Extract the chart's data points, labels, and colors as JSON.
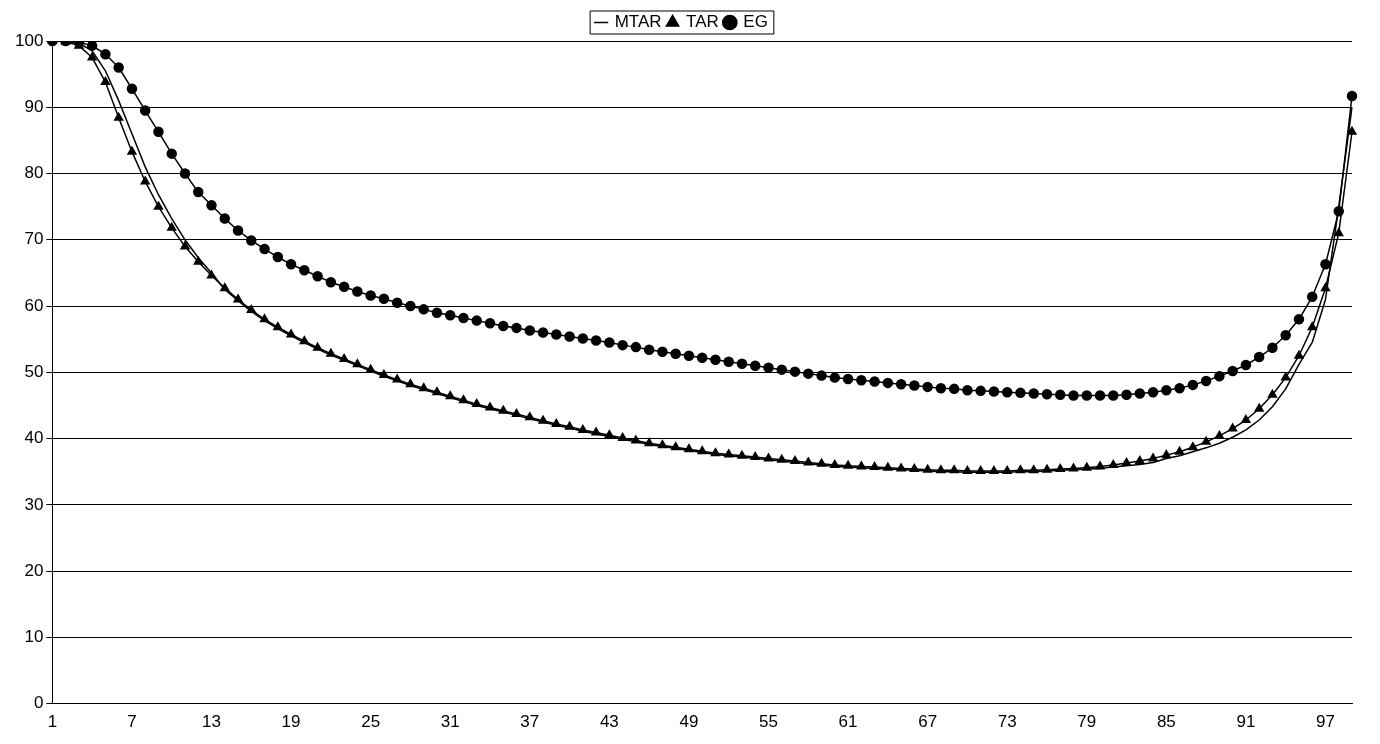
{
  "chart_data": {
    "type": "line",
    "categories": [
      "1",
      null,
      null,
      null,
      null,
      null,
      "7",
      null,
      null,
      null,
      null,
      null,
      "13",
      null,
      null,
      null,
      null,
      null,
      "19",
      null,
      null,
      null,
      null,
      null,
      "25",
      null,
      null,
      null,
      null,
      null,
      "31",
      null,
      null,
      null,
      null,
      null,
      "37",
      null,
      null,
      null,
      null,
      null,
      "43",
      null,
      null,
      null,
      null,
      null,
      "49",
      null,
      null,
      null,
      null,
      null,
      "55",
      null,
      null,
      null,
      null,
      null,
      "61",
      null,
      null,
      null,
      null,
      null,
      "67",
      null,
      null,
      null,
      null,
      null,
      "73",
      null,
      null,
      null,
      null,
      null,
      "79",
      null,
      null,
      null,
      null,
      null,
      "85",
      null,
      null,
      null,
      null,
      null,
      "91",
      null,
      null,
      null,
      null,
      null,
      "97",
      null,
      null
    ],
    "series": [
      {
        "name": "MTAR",
        "color": "#000000",
        "marker": "none",
        "values": [
          100,
          100,
          99.7,
          98.5,
          95.5,
          91,
          86,
          81,
          76.8,
          73.2,
          70,
          67.3,
          65,
          62.5,
          60.8,
          59.2,
          57.8,
          56.6,
          55.5,
          54.5,
          53.5,
          52.6,
          51.8,
          51,
          50.2,
          49.4,
          48.7,
          48,
          47.4,
          46.8,
          46.2,
          45.6,
          45,
          44.5,
          44,
          43.5,
          43,
          42.5,
          42,
          41.6,
          41.1,
          40.7,
          40.3,
          39.9,
          39.5,
          39.1,
          38.8,
          38.5,
          38.2,
          37.9,
          37.6,
          37.4,
          37.2,
          37,
          36.8,
          36.6,
          36.4,
          36.2,
          36,
          35.8,
          35.7,
          35.6,
          35.5,
          35.4,
          35.3,
          35.2,
          35.1,
          35,
          35,
          34.9,
          34.9,
          34.9,
          34.9,
          35,
          35,
          35.1,
          35.2,
          35.3,
          35.4,
          35.5,
          35.7,
          35.9,
          36.1,
          36.4,
          37,
          37.4,
          38,
          38.6,
          39.3,
          40.2,
          41.3,
          42.8,
          44.8,
          47.5,
          51.2,
          54.5,
          61,
          75,
          90
        ]
      },
      {
        "name": "TAR",
        "color": "#000000",
        "marker": "triangle",
        "values": [
          100,
          99.9,
          99.3,
          97.5,
          93.8,
          88.4,
          83.3,
          78.8,
          75,
          71.8,
          69,
          66.7,
          64.6,
          62.7,
          61,
          59.4,
          58,
          56.8,
          55.7,
          54.7,
          53.7,
          52.8,
          52,
          51.2,
          50.4,
          49.6,
          48.9,
          48.2,
          47.6,
          47,
          46.4,
          45.8,
          45.2,
          44.7,
          44.2,
          43.7,
          43.2,
          42.7,
          42.2,
          41.8,
          41.3,
          40.9,
          40.5,
          40.1,
          39.7,
          39.3,
          39,
          38.7,
          38.4,
          38.1,
          37.8,
          37.6,
          37.4,
          37.2,
          37,
          36.8,
          36.6,
          36.4,
          36.2,
          36,
          35.9,
          35.8,
          35.7,
          35.6,
          35.5,
          35.4,
          35.3,
          35.2,
          35.2,
          35.1,
          35.1,
          35.1,
          35.1,
          35.2,
          35.2,
          35.3,
          35.4,
          35.5,
          35.6,
          35.8,
          36,
          36.3,
          36.6,
          37,
          37.5,
          38,
          38.7,
          39.5,
          40.4,
          41.5,
          42.8,
          44.5,
          46.6,
          49.2,
          52.5,
          56.8,
          62.7,
          71,
          86.3
        ]
      },
      {
        "name": "EG",
        "color": "#000000",
        "marker": "circle",
        "values": [
          100,
          100,
          99.8,
          99.3,
          98,
          96,
          92.8,
          89.5,
          86.3,
          83,
          80,
          77.2,
          75.2,
          73.2,
          71.4,
          69.9,
          68.6,
          67.4,
          66.3,
          65.4,
          64.5,
          63.6,
          62.9,
          62.2,
          61.6,
          61.1,
          60.5,
          60,
          59.5,
          59,
          58.6,
          58.2,
          57.8,
          57.4,
          57,
          56.7,
          56.3,
          56,
          55.7,
          55.4,
          55.1,
          54.8,
          54.5,
          54.1,
          53.8,
          53.4,
          53.1,
          52.8,
          52.5,
          52.2,
          51.9,
          51.6,
          51.3,
          51,
          50.7,
          50.4,
          50.1,
          49.8,
          49.5,
          49.2,
          49,
          48.8,
          48.6,
          48.4,
          48.2,
          48,
          47.8,
          47.6,
          47.5,
          47.3,
          47.2,
          47.1,
          47,
          46.9,
          46.8,
          46.7,
          46.6,
          46.5,
          46.5,
          46.5,
          46.5,
          46.6,
          46.8,
          47,
          47.3,
          47.6,
          48.1,
          48.7,
          49.4,
          50.2,
          51.1,
          52.3,
          53.7,
          55.6,
          58,
          61.4,
          66.3,
          74.3,
          91.7
        ]
      }
    ],
    "ylim": [
      0,
      100
    ],
    "yticks": [
      0,
      10,
      20,
      30,
      40,
      50,
      60,
      70,
      80,
      90,
      100
    ],
    "grid": "y",
    "legend": "top"
  }
}
